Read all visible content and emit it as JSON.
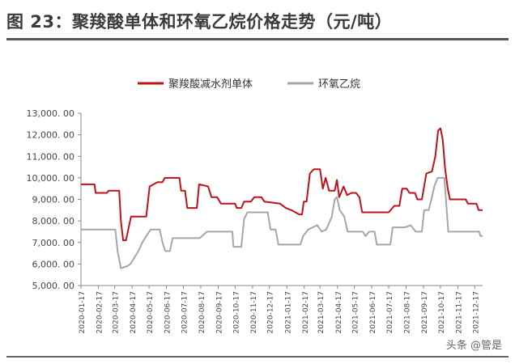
{
  "figure_title": "图 23：聚羧酸单体和环氧乙烷价格走势（元/吨）",
  "watermark": "头条 @管是",
  "chart_data": {
    "type": "line",
    "title": "",
    "xlabel": "",
    "ylabel": "",
    "ylim": [
      5000,
      13000
    ],
    "y_ticks": [
      5000,
      6000,
      7000,
      8000,
      9000,
      10000,
      11000,
      12000,
      13000
    ],
    "y_tick_labels": [
      "5,000. 00",
      "6,000. 00",
      "7,000. 00",
      "8,000. 00",
      "9,000. 00",
      "10,000. 00",
      "11,000. 00",
      "12,000. 00",
      "13,000. 00"
    ],
    "x_range": [
      "2020-01-17",
      "2021-12-31"
    ],
    "x_ticks": [
      "2020-01-17",
      "2020-02-17",
      "2020-03-17",
      "2020-04-17",
      "2020-05-17",
      "2020-06-17",
      "2020-07-17",
      "2020-08-17",
      "2020-09-17",
      "2020-10-17",
      "2020-11-17",
      "2020-12-17",
      "2021-01-17",
      "2021-02-17",
      "2021-03-17",
      "2021-04-17",
      "2021-05-17",
      "2021-06-17",
      "2021-07-17",
      "2021-08-17",
      "2021-09-17",
      "2021-10-17",
      "2021-11-17",
      "2021-12-17"
    ],
    "legend_position": "top",
    "grid": false,
    "series": [
      {
        "name": "聚羧酸减水剂单体",
        "color": "#c0101a",
        "points": [
          [
            "2020-01-17",
            9700
          ],
          [
            "2020-02-10",
            9700
          ],
          [
            "2020-02-12",
            9300
          ],
          [
            "2020-03-03",
            9300
          ],
          [
            "2020-03-06",
            9400
          ],
          [
            "2020-03-25",
            9400
          ],
          [
            "2020-03-28",
            8000
          ],
          [
            "2020-04-01",
            7100
          ],
          [
            "2020-04-06",
            7100
          ],
          [
            "2020-04-10",
            7600
          ],
          [
            "2020-04-15",
            8200
          ],
          [
            "2020-05-12",
            8200
          ],
          [
            "2020-05-18",
            9600
          ],
          [
            "2020-05-25",
            9700
          ],
          [
            "2020-06-01",
            9800
          ],
          [
            "2020-06-10",
            9800
          ],
          [
            "2020-06-14",
            10000
          ],
          [
            "2020-07-10",
            10000
          ],
          [
            "2020-07-13",
            9400
          ],
          [
            "2020-07-20",
            9400
          ],
          [
            "2020-07-24",
            8600
          ],
          [
            "2020-08-10",
            8600
          ],
          [
            "2020-08-14",
            9700
          ],
          [
            "2020-08-30",
            9600
          ],
          [
            "2020-09-05",
            9100
          ],
          [
            "2020-09-15",
            9100
          ],
          [
            "2020-09-22",
            8800
          ],
          [
            "2020-10-17",
            8800
          ],
          [
            "2020-10-20",
            8600
          ],
          [
            "2020-10-28",
            8600
          ],
          [
            "2020-11-02",
            8900
          ],
          [
            "2020-11-14",
            8900
          ],
          [
            "2020-11-20",
            9100
          ],
          [
            "2020-12-03",
            9100
          ],
          [
            "2020-12-08",
            8900
          ],
          [
            "2021-01-05",
            8800
          ],
          [
            "2021-01-15",
            8600
          ],
          [
            "2021-01-25",
            8500
          ],
          [
            "2021-02-08",
            8300
          ],
          [
            "2021-02-13",
            8300
          ],
          [
            "2021-02-16",
            8900
          ],
          [
            "2021-02-21",
            8900
          ],
          [
            "2021-02-27",
            10200
          ],
          [
            "2021-03-06",
            10400
          ],
          [
            "2021-03-17",
            10400
          ],
          [
            "2021-03-22",
            9500
          ],
          [
            "2021-03-27",
            10000
          ],
          [
            "2021-04-02",
            9400
          ],
          [
            "2021-04-12",
            9400
          ],
          [
            "2021-04-16",
            9900
          ],
          [
            "2021-04-20",
            9100
          ],
          [
            "2021-04-28",
            9600
          ],
          [
            "2021-05-04",
            9200
          ],
          [
            "2021-05-12",
            9300
          ],
          [
            "2021-05-20",
            9300
          ],
          [
            "2021-05-26",
            9100
          ],
          [
            "2021-05-31",
            8400
          ],
          [
            "2021-07-17",
            8400
          ],
          [
            "2021-07-27",
            8700
          ],
          [
            "2021-08-05",
            8700
          ],
          [
            "2021-08-10",
            9500
          ],
          [
            "2021-08-18",
            9500
          ],
          [
            "2021-08-23",
            9300
          ],
          [
            "2021-09-02",
            9300
          ],
          [
            "2021-09-06",
            9000
          ],
          [
            "2021-09-14",
            9000
          ],
          [
            "2021-09-22",
            10200
          ],
          [
            "2021-10-02",
            10300
          ],
          [
            "2021-10-08",
            11000
          ],
          [
            "2021-10-13",
            12200
          ],
          [
            "2021-10-17",
            12300
          ],
          [
            "2021-10-21",
            11800
          ],
          [
            "2021-10-25",
            10500
          ],
          [
            "2021-10-30",
            9500
          ],
          [
            "2021-11-03",
            9000
          ],
          [
            "2021-12-01",
            9000
          ],
          [
            "2021-12-05",
            8800
          ],
          [
            "2021-12-20",
            8800
          ],
          [
            "2021-12-24",
            8500
          ],
          [
            "2021-12-31",
            8500
          ]
        ]
      },
      {
        "name": "环氧乙烷",
        "color": "#a6a6a6",
        "points": [
          [
            "2020-01-17",
            7600
          ],
          [
            "2020-03-18",
            7600
          ],
          [
            "2020-03-22",
            6600
          ],
          [
            "2020-03-28",
            5800
          ],
          [
            "2020-04-08",
            5900
          ],
          [
            "2020-04-14",
            6000
          ],
          [
            "2020-04-21",
            6300
          ],
          [
            "2020-04-28",
            6600
          ],
          [
            "2020-05-05",
            7000
          ],
          [
            "2020-05-12",
            7300
          ],
          [
            "2020-05-20",
            7600
          ],
          [
            "2020-06-05",
            7600
          ],
          [
            "2020-06-10",
            7000
          ],
          [
            "2020-06-15",
            6600
          ],
          [
            "2020-06-23",
            6600
          ],
          [
            "2020-06-28",
            7200
          ],
          [
            "2020-08-15",
            7200
          ],
          [
            "2020-08-28",
            7500
          ],
          [
            "2020-10-12",
            7500
          ],
          [
            "2020-10-14",
            6800
          ],
          [
            "2020-10-28",
            6800
          ],
          [
            "2020-11-02",
            8100
          ],
          [
            "2020-11-08",
            8400
          ],
          [
            "2020-12-14",
            8400
          ],
          [
            "2020-12-19",
            7600
          ],
          [
            "2020-12-28",
            7600
          ],
          [
            "2021-01-02",
            6900
          ],
          [
            "2021-02-10",
            6900
          ],
          [
            "2021-02-15",
            7300
          ],
          [
            "2021-02-24",
            7600
          ],
          [
            "2021-03-12",
            7800
          ],
          [
            "2021-03-20",
            7500
          ],
          [
            "2021-03-28",
            7600
          ],
          [
            "2021-04-07",
            8200
          ],
          [
            "2021-04-12",
            9000
          ],
          [
            "2021-04-16",
            9100
          ],
          [
            "2021-04-21",
            8500
          ],
          [
            "2021-04-29",
            8200
          ],
          [
            "2021-05-05",
            7500
          ],
          [
            "2021-06-01",
            7500
          ],
          [
            "2021-06-06",
            7300
          ],
          [
            "2021-06-12",
            7500
          ],
          [
            "2021-06-22",
            7500
          ],
          [
            "2021-06-26",
            6900
          ],
          [
            "2021-07-20",
            6900
          ],
          [
            "2021-07-24",
            7700
          ],
          [
            "2021-08-15",
            7700
          ],
          [
            "2021-08-25",
            7800
          ],
          [
            "2021-09-03",
            7500
          ],
          [
            "2021-09-14",
            7500
          ],
          [
            "2021-09-18",
            8500
          ],
          [
            "2021-09-26",
            8500
          ],
          [
            "2021-10-01",
            9000
          ],
          [
            "2021-10-06",
            9600
          ],
          [
            "2021-10-12",
            10000
          ],
          [
            "2021-10-24",
            10000
          ],
          [
            "2021-10-31",
            7500
          ],
          [
            "2021-12-25",
            7500
          ],
          [
            "2021-12-27",
            7300
          ],
          [
            "2021-12-31",
            7300
          ]
        ]
      }
    ]
  }
}
